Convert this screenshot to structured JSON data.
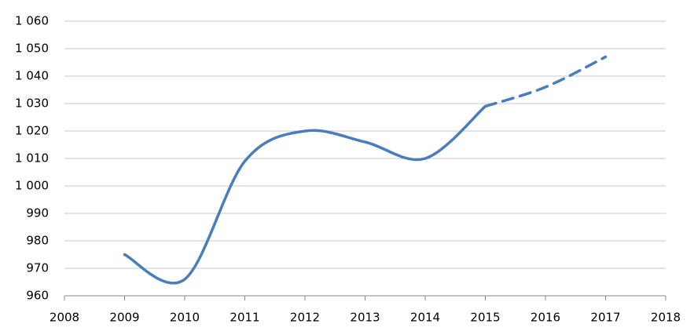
{
  "chart_data": {
    "type": "line",
    "x": [
      2009,
      2010,
      2011,
      2012,
      2013,
      2014,
      2015,
      2016,
      2017
    ],
    "series": [
      {
        "color": "#4a7ebb",
        "dashed": false,
        "values": [
          975,
          966,
          1009,
          1020,
          1016,
          1010,
          1029,
          null,
          null
        ]
      },
      {
        "color": "#4a7ebb",
        "dashed": true,
        "values": [
          null,
          null,
          null,
          null,
          null,
          null,
          1029,
          1036,
          1047
        ]
      }
    ],
    "xlim": [
      2008,
      2018
    ],
    "xticks": [
      2008,
      2009,
      2010,
      2011,
      2012,
      2013,
      2014,
      2015,
      2016,
      2017,
      2018
    ],
    "ylim": [
      960,
      1060
    ],
    "yticks": [
      960,
      970,
      980,
      990,
      {
        "value": 1000,
        "label": "1 000"
      },
      {
        "value": 1010,
        "label": "1 010"
      },
      {
        "value": 1020,
        "label": "1 020"
      },
      {
        "value": 1030,
        "label": "1 030"
      },
      {
        "value": 1040,
        "label": "1 040"
      },
      {
        "value": 1050,
        "label": "1 050"
      },
      {
        "value": 1060,
        "label": "1 060"
      }
    ],
    "grid": true
  }
}
